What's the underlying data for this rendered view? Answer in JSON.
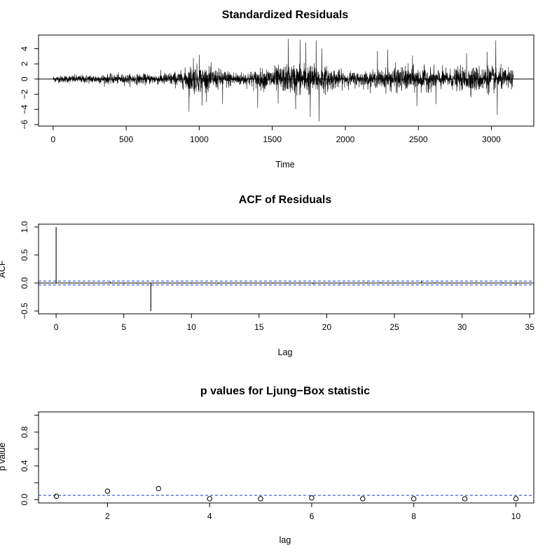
{
  "chart_data": [
    {
      "type": "line",
      "title": "Standardized Residuals",
      "xlabel": "Time",
      "ylabel": "",
      "xlim": [
        -100,
        3290
      ],
      "ylim": [
        -6.2,
        5.8
      ],
      "xticks": [
        0,
        500,
        1000,
        1500,
        2000,
        2500,
        3000
      ],
      "yticks": [
        -6,
        -4,
        -2,
        0,
        2,
        4
      ],
      "n": 3150,
      "reference_line": 0,
      "series": [
        {
          "values_note_free": true,
          "envelope": [
            {
              "x": 0,
              "y": 0.5
            },
            {
              "x": 300,
              "y": 0.7
            },
            {
              "x": 700,
              "y": 0.8
            },
            {
              "x": 880,
              "y": 1.2
            },
            {
              "x": 950,
              "y": 2.2
            },
            {
              "x": 1100,
              "y": 1.6
            },
            {
              "x": 1300,
              "y": 1.0
            },
            {
              "x": 1500,
              "y": 1.8
            },
            {
              "x": 1700,
              "y": 2.4
            },
            {
              "x": 1850,
              "y": 2.0
            },
            {
              "x": 2000,
              "y": 1.1
            },
            {
              "x": 2200,
              "y": 1.2
            },
            {
              "x": 2350,
              "y": 1.9
            },
            {
              "x": 2550,
              "y": 1.7
            },
            {
              "x": 2700,
              "y": 1.4
            },
            {
              "x": 2850,
              "y": 1.9
            },
            {
              "x": 3000,
              "y": 2.0
            },
            {
              "x": 3150,
              "y": 1.3
            }
          ],
          "spikes": [
            {
              "x": 930,
              "y": -4.3
            },
            {
              "x": 960,
              "y": 2.8
            },
            {
              "x": 1000,
              "y": 3.2
            },
            {
              "x": 1020,
              "y": -3.5
            },
            {
              "x": 1160,
              "y": -3.3
            },
            {
              "x": 1400,
              "y": -3.8
            },
            {
              "x": 1540,
              "y": -3.2
            },
            {
              "x": 1610,
              "y": 5.3
            },
            {
              "x": 1660,
              "y": -4.0
            },
            {
              "x": 1690,
              "y": 5.2
            },
            {
              "x": 1730,
              "y": 4.8
            },
            {
              "x": 1760,
              "y": -5.0
            },
            {
              "x": 1800,
              "y": 5.1
            },
            {
              "x": 1820,
              "y": -5.6
            },
            {
              "x": 1840,
              "y": 4.0
            },
            {
              "x": 2220,
              "y": 3.7
            },
            {
              "x": 2290,
              "y": 3.9
            },
            {
              "x": 2460,
              "y": 3.1
            },
            {
              "x": 2490,
              "y": -3.6
            },
            {
              "x": 2620,
              "y": -3.3
            },
            {
              "x": 2830,
              "y": 3.4
            },
            {
              "x": 2970,
              "y": 3.6
            },
            {
              "x": 3030,
              "y": 5.1
            },
            {
              "x": 3040,
              "y": -4.7
            }
          ]
        }
      ]
    },
    {
      "type": "bar",
      "title": "ACF of Residuals",
      "xlabel": "Lag",
      "ylabel": "ACF",
      "xlim": [
        -1.3,
        35.3
      ],
      "ylim": [
        -0.55,
        1.05
      ],
      "xticks": [
        0,
        5,
        10,
        15,
        20,
        25,
        30,
        35
      ],
      "yticks": [
        -0.5,
        0.0,
        0.5,
        1.0
      ],
      "confidence_band": [
        -0.035,
        0.035
      ],
      "x": [
        0,
        1,
        2,
        3,
        4,
        5,
        6,
        7,
        8,
        9,
        10,
        11,
        12,
        13,
        14,
        15,
        16,
        17,
        18,
        19,
        20,
        21,
        22,
        23,
        24,
        25,
        26,
        27,
        28,
        29,
        30,
        31,
        32,
        33,
        34
      ],
      "values": [
        1.0,
        0.012,
        -0.01,
        0.008,
        0.025,
        -0.015,
        -0.012,
        -0.5,
        0.01,
        -0.008,
        -0.01,
        0.012,
        -0.018,
        0.008,
        -0.01,
        -0.005,
        0.008,
        -0.012,
        -0.01,
        -0.02,
        0.008,
        -0.015,
        0.005,
        0.012,
        0.018,
        -0.01,
        0.008,
        0.03,
        0.015,
        -0.008,
        0.005,
        0.01,
        -0.008,
        0.012,
        -0.02
      ]
    },
    {
      "type": "scatter",
      "title": "p values for Ljung−Box statistic",
      "xlabel": "lag",
      "ylabel": "p value",
      "xlim": [
        0.65,
        10.35
      ],
      "ylim": [
        -0.04,
        1.04
      ],
      "xticks": [
        2,
        4,
        6,
        8,
        10
      ],
      "yticks": [
        0.0,
        0.4,
        0.8
      ],
      "yticks_minor": [
        0.2,
        0.6,
        1.0
      ],
      "reference_line": 0.05,
      "x": [
        1,
        2,
        3,
        4,
        5,
        6,
        7,
        8,
        9,
        10
      ],
      "values": [
        0.04,
        0.1,
        0.13,
        0.01,
        0.01,
        0.02,
        0.01,
        0.01,
        0.01,
        0.01
      ]
    }
  ]
}
